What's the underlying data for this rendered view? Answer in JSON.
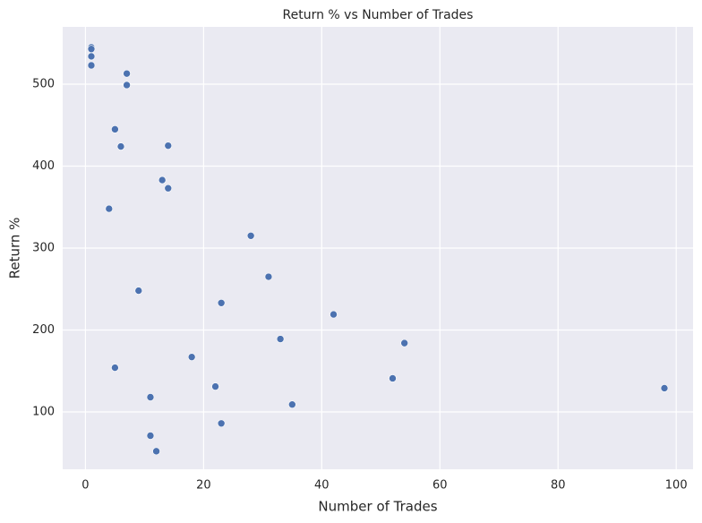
{
  "chart_data": {
    "type": "scatter",
    "title": "Return % vs Number of Trades",
    "x_label": "Number of Trades",
    "y_label": "Return %",
    "series": [
      {
        "color": "#4c72b0",
        "x": [
          1,
          1,
          1,
          1,
          7,
          7,
          5,
          6,
          14,
          13,
          14,
          4,
          28,
          31,
          9,
          23,
          42,
          33,
          54,
          18,
          5,
          52,
          22,
          98,
          11,
          35,
          23,
          11,
          12
        ],
        "values": [
          545,
          543,
          534,
          523,
          513,
          499,
          445,
          424,
          425,
          383,
          373,
          348,
          315,
          265,
          248,
          233,
          219,
          189,
          184,
          167,
          154,
          141,
          131,
          129,
          118,
          109,
          86,
          71,
          52
        ]
      }
    ],
    "xlim": [
      -3.85,
      102.85
    ],
    "xticks": [
      0,
      20,
      40,
      60,
      80,
      100
    ],
    "ylim": [
      30,
      570
    ],
    "yticks": [
      100,
      200,
      300,
      400,
      500
    ],
    "grid": true
  }
}
